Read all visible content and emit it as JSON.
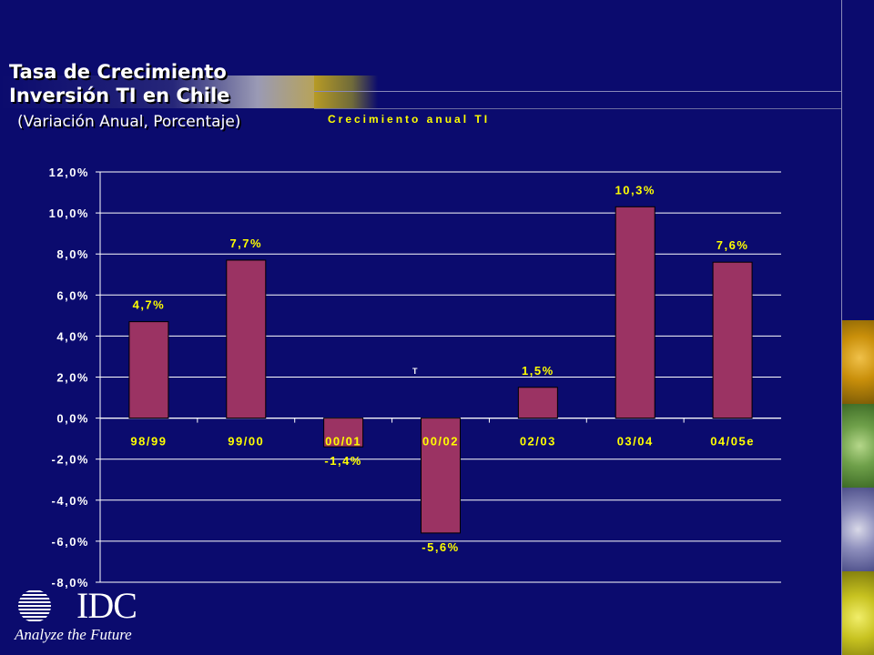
{
  "slide": {
    "title_line1": "Tasa de Crecimiento",
    "title_line2": "Inversión TI en Chile",
    "subtitle": "(Variación Anual, Porcentaje)"
  },
  "logo": {
    "name": "IDC",
    "tagline": "Analyze the Future"
  },
  "colors": {
    "background": "#0b0b6e",
    "bar": "#9b3363",
    "label": "#ffff00",
    "axis": "#ffffff"
  },
  "chart_data": {
    "type": "bar",
    "title": "Crecimiento anual TI",
    "categories": [
      "98/99",
      "99/00",
      "00/01",
      "00/02",
      "02/03",
      "03/04",
      "04/05e"
    ],
    "values": [
      4.7,
      7.7,
      -1.4,
      -5.6,
      1.5,
      10.3,
      7.6
    ],
    "data_labels": [
      "4,7%",
      "7,7%",
      "-1,4%",
      "-5,6%",
      "1,5%",
      "10,3%",
      "7,6%"
    ],
    "ylim": [
      -8,
      12
    ],
    "yticks": [
      12,
      10,
      8,
      6,
      4,
      2,
      0,
      -2,
      -4,
      -6,
      -8
    ],
    "ytick_labels": [
      "12,0%",
      "10,0%",
      "8,0%",
      "6,0%",
      "4,0%",
      "2,0%",
      "0,0%",
      "-2,0%",
      "-4,0%",
      "-6,0%",
      "-8,0%"
    ],
    "grid": true,
    "stray_mark": "T"
  }
}
